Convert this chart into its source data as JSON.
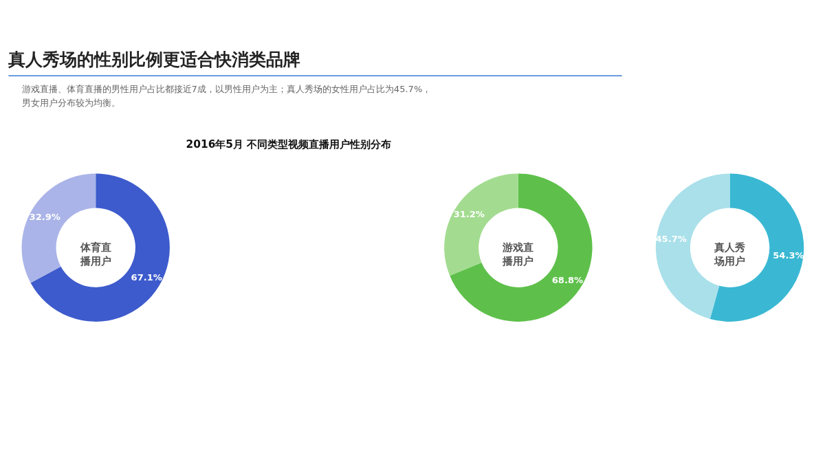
{
  "chart_data": [
    {
      "type": "donut",
      "title": "2016年5月 不同类型视频直播用户性别分布",
      "categories": [
        null,
        null
      ],
      "values": [
        67.1,
        32.9
      ],
      "colors": [
        "#3d5bcc",
        "#aab4e8"
      ],
      "value_labels": [
        "67.1%",
        "32.9%"
      ],
      "annotations": [
        "真人秀场的性别比例更适合快消类品牌",
        "游戏直播、体育直播的男性用户占比都接近7成，以男性用户为主；真人秀场的女性用户占比为45.7%，",
        "男女用户分布较为均衡。",
        "体育直播用户"
      ]
    },
    {
      "type": "donut",
      "categories": [
        null,
        null
      ],
      "values": [
        68.8,
        31.2
      ],
      "colors": [
        "#5ec04a",
        "#a3dc90"
      ],
      "value_labels": [
        "68.8%",
        "31.2%"
      ],
      "annotations": [
        "游戏直播用户"
      ]
    },
    {
      "type": "donut",
      "categories": [
        null,
        null
      ],
      "values": [
        54.3,
        45.7
      ],
      "colors": [
        "#3ab8d3",
        "#a9e0ea"
      ],
      "value_labels": [
        "54.3%",
        "45.7%"
      ],
      "annotations": [
        "真人秀场用户"
      ]
    }
  ]
}
